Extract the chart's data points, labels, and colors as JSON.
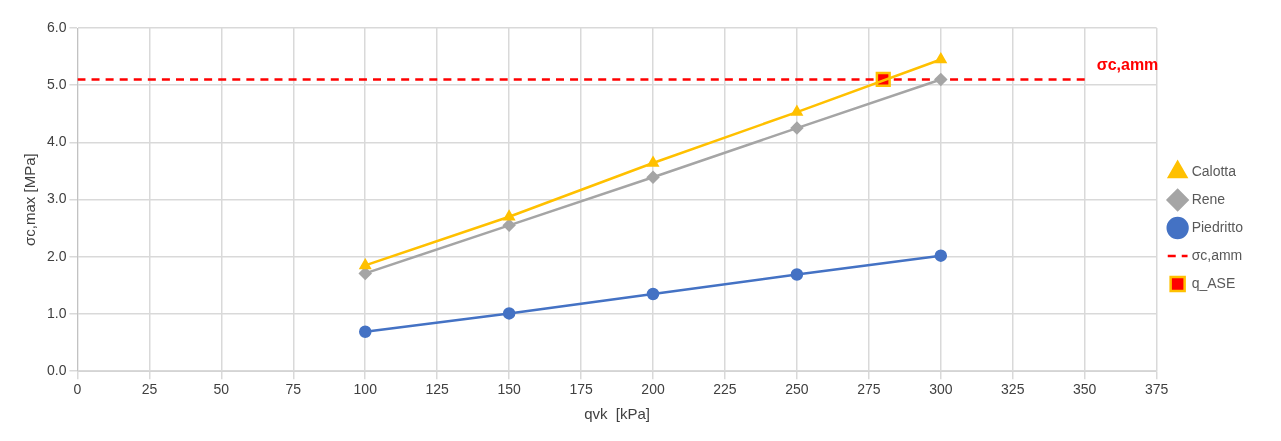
{
  "chart_data": {
    "type": "line",
    "xlabel": "qvk  [kPa]",
    "ylabel": "σc,max [MPa]",
    "xlim": [
      0,
      375
    ],
    "xticks": [
      0,
      25,
      50,
      75,
      100,
      125,
      150,
      175,
      200,
      225,
      250,
      275,
      300,
      325,
      350,
      375
    ],
    "ylim": [
      0,
      6
    ],
    "yticks": [
      {
        "value": 0,
        "label": "0.0"
      },
      {
        "value": 1,
        "label": "1.0"
      },
      {
        "value": 2,
        "label": "2.0"
      },
      {
        "value": 3,
        "label": "3.0"
      },
      {
        "value": 4,
        "label": "4.0"
      },
      {
        "value": 5,
        "label": "5.0"
      },
      {
        "value": 6,
        "label": "6.0"
      }
    ],
    "x": [
      100,
      150,
      200,
      250,
      300
    ],
    "series": [
      {
        "name": "Calotta",
        "color": "#ffc000",
        "marker": "triangle",
        "values": [
          1.85,
          2.7,
          3.64,
          4.53,
          5.45
        ]
      },
      {
        "name": "Rene",
        "color": "#a5a5a5",
        "marker": "diamond",
        "values": [
          1.71,
          2.55,
          3.39,
          4.25,
          5.1
        ]
      },
      {
        "name": "Piedritto",
        "color": "#4472c4",
        "marker": "circle",
        "values": [
          0.69,
          1.01,
          1.35,
          1.69,
          2.02
        ]
      },
      {
        "name": "σc,amm",
        "color": "#ff0000",
        "marker": "none",
        "line_style": "dashed",
        "x": [
          0,
          350
        ],
        "values": [
          5.1,
          5.1
        ]
      },
      {
        "name": "q_ASE",
        "type": "scatter",
        "color": "#ff0000",
        "marker": "square",
        "x": [
          280
        ],
        "values": [
          5.1
        ]
      }
    ],
    "annotations": [
      {
        "text": "σc,amm",
        "x": 350,
        "y": 5.1
      }
    ],
    "grid": true,
    "legend": "right"
  }
}
